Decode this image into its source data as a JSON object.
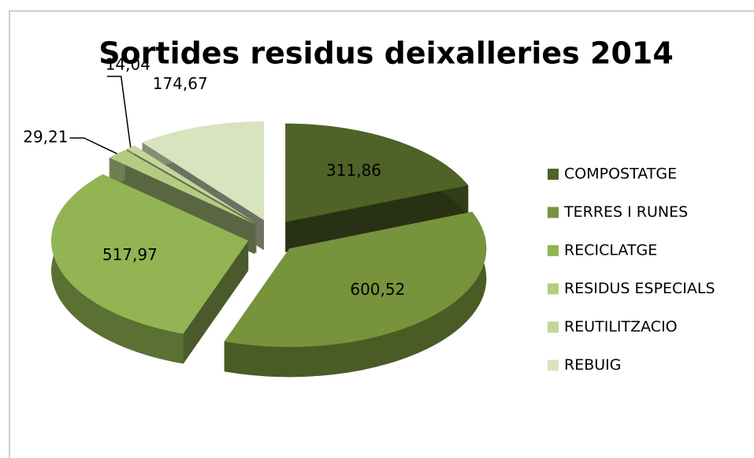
{
  "chart_data": {
    "type": "pie",
    "title": "Sortides residus deixalleries 2014",
    "categories": [
      "COMPOSTATGE",
      "TERRES I RUNES",
      "RECICLATGE",
      "RESIDUS ESPECIALS",
      "REUTILITZACIO",
      "REBUIG"
    ],
    "values": [
      311.86,
      600.52,
      517.97,
      29.21,
      14.04,
      174.67
    ],
    "value_labels": [
      "311,86",
      "600,52",
      "517,97",
      "29,21",
      "14,04",
      "174,67"
    ],
    "colors": [
      "#4f6228",
      "#77933c",
      "#93b453",
      "#b3cc82",
      "#c3d69b",
      "#d7e4bd"
    ],
    "legend": "right"
  }
}
